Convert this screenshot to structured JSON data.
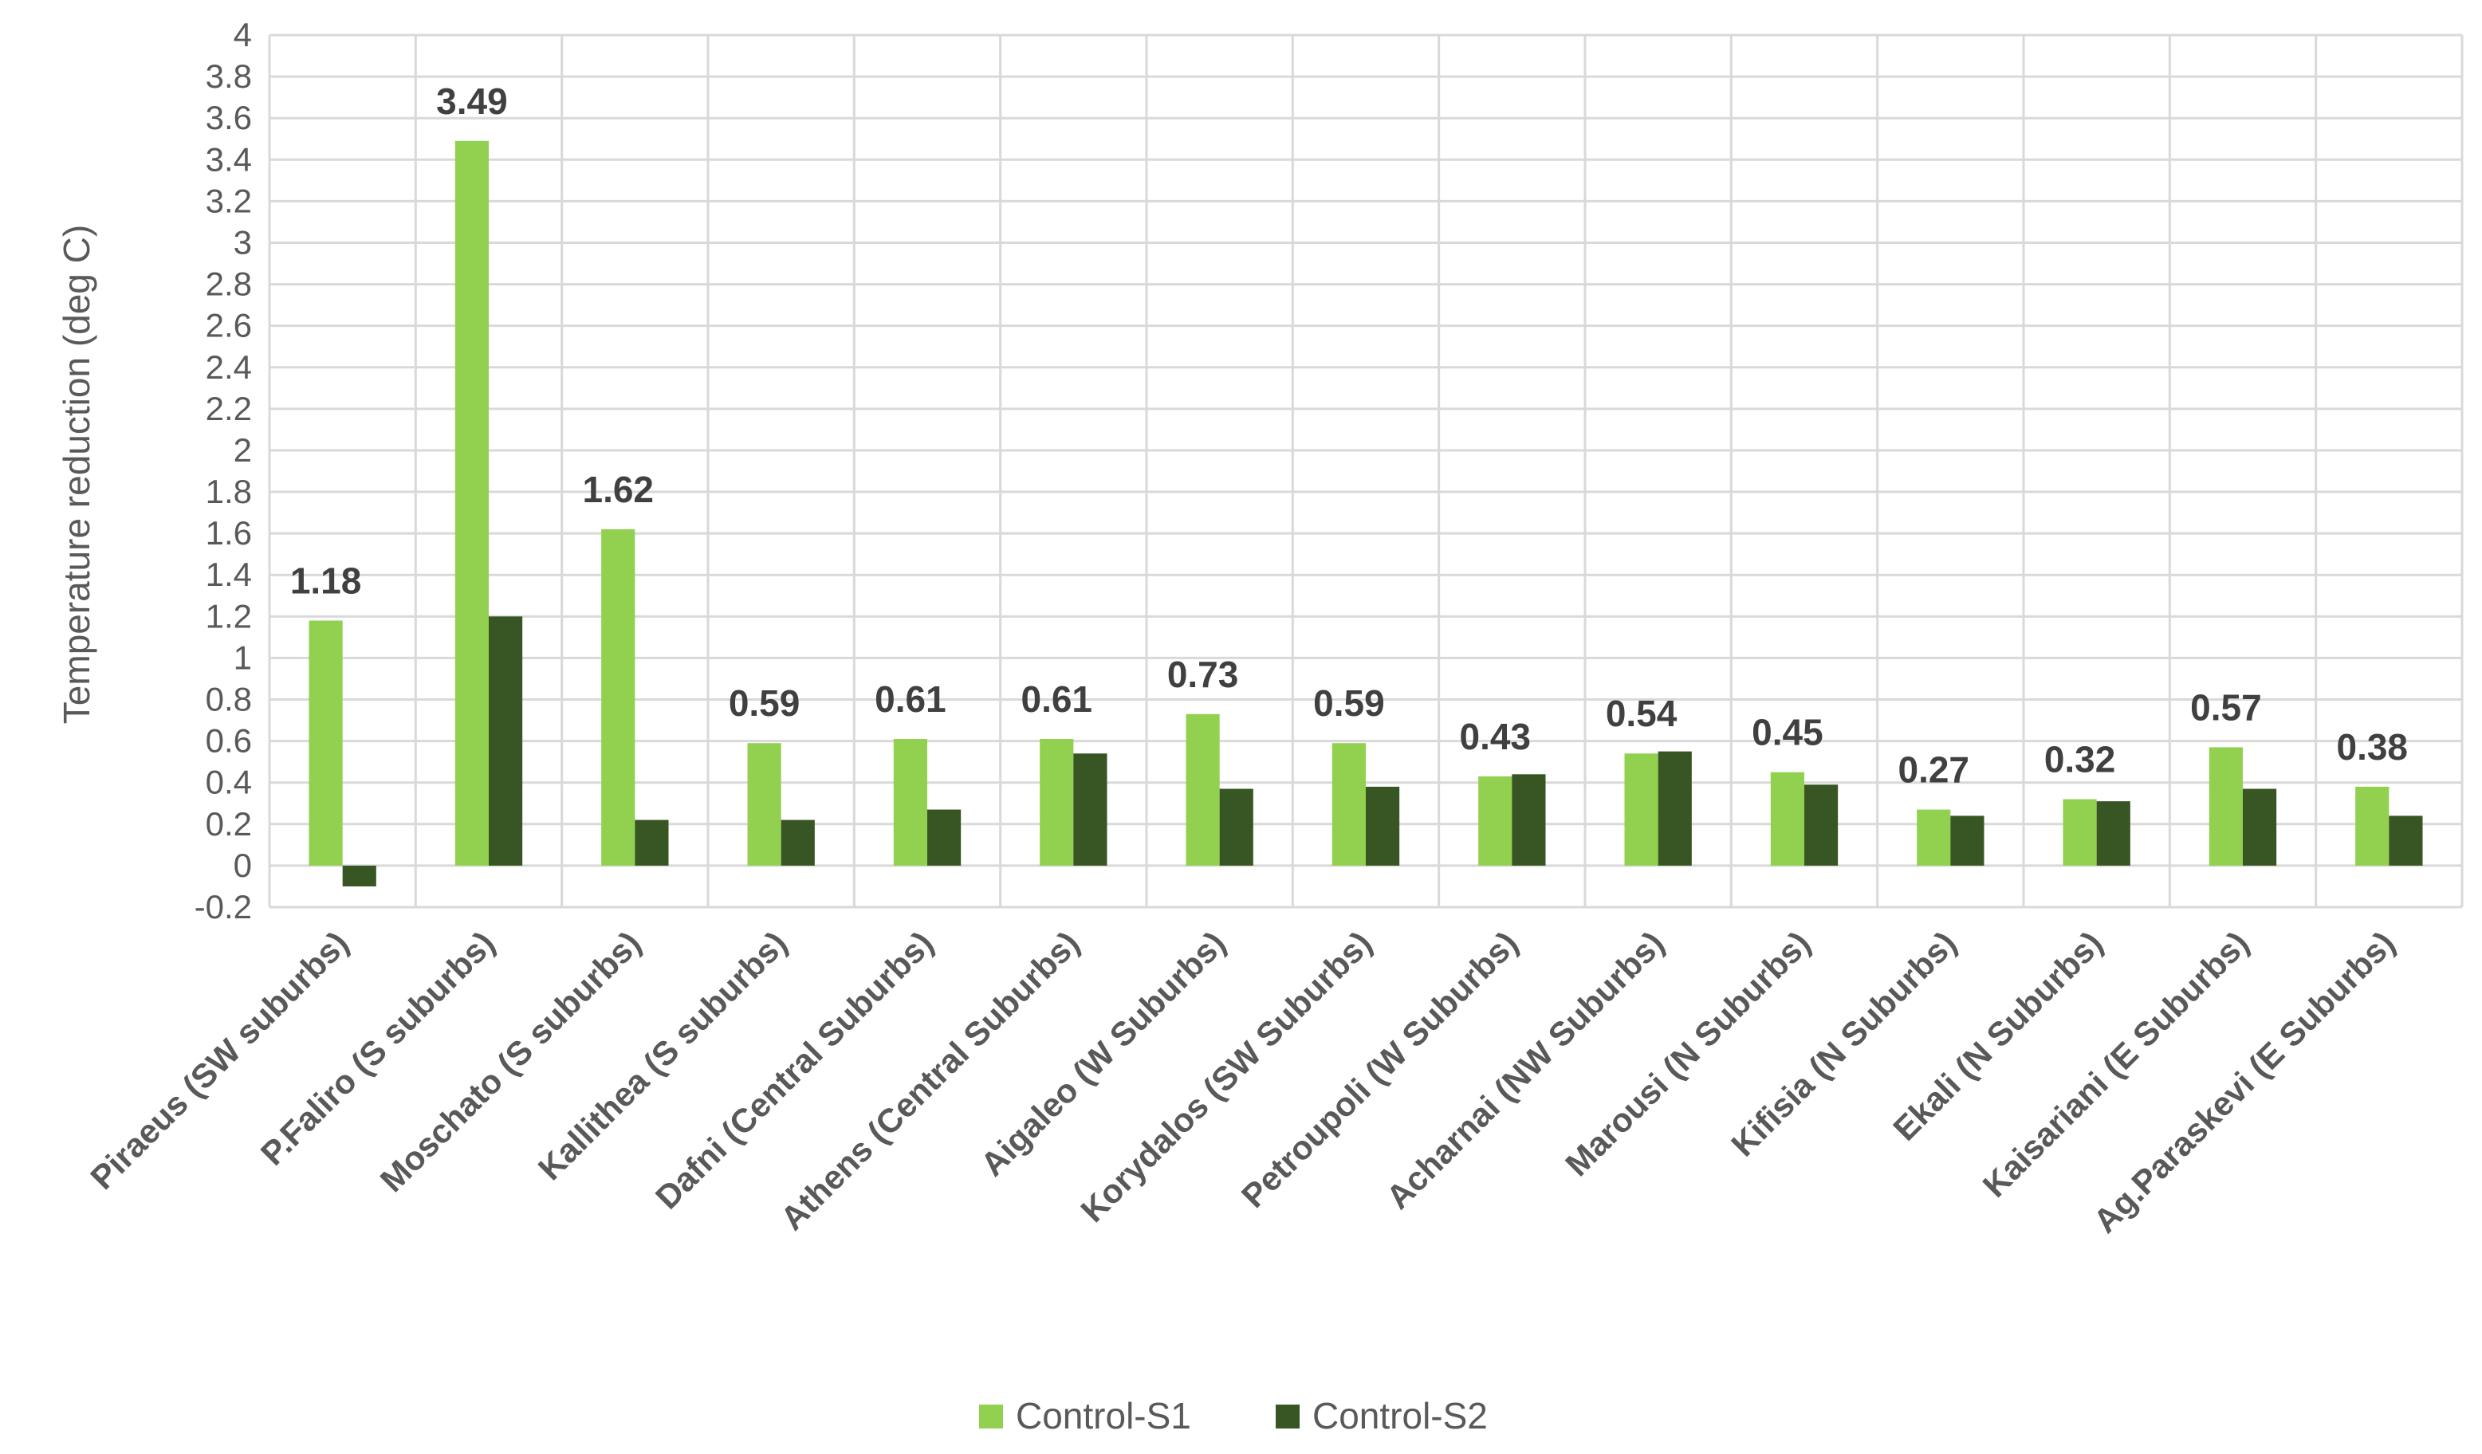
{
  "chart_data": {
    "type": "bar",
    "title": "",
    "xlabel": "",
    "ylabel": "Temperature reduction (deg C)",
    "ylim": [
      -0.2,
      4
    ],
    "ytick_step": 0.2,
    "yticks": [
      "4",
      "3.8",
      "3.6",
      "3.4",
      "3.2",
      "3",
      "2.8",
      "2.6",
      "2.4",
      "2.2",
      "2",
      "1.8",
      "1.6",
      "1.4",
      "1.2",
      "1",
      "0.8",
      "0.6",
      "0.4",
      "0.2",
      "0",
      "-0.2"
    ],
    "grid": true,
    "legend_position": "bottom",
    "categories": [
      "Piraeus (SW suburbs)",
      "P.Faliro (S suburbs)",
      "Moschato (S suburbs)",
      "Kallithea (S suburbs)",
      "Dafni (Central Suburbs)",
      "Athens (Central Suburbs)",
      "Aigaleo (W Suburbs)",
      "Korydalos (SW Suburbs)",
      "Petroupoli (W Suburbs)",
      "Acharnai (NW Suburbs)",
      "Marousi (N Suburbs)",
      "Kifisia (N Suburbs)",
      "Ekali (N Suburbs)",
      "Kaisariani (E Suburbs)",
      "Ag.Paraskevi (E Suburbs)"
    ],
    "series": [
      {
        "name": "Control-S1",
        "color": "#92d050",
        "values": [
          1.18,
          3.49,
          1.62,
          0.59,
          0.61,
          0.61,
          0.73,
          0.59,
          0.43,
          0.54,
          0.45,
          0.27,
          0.32,
          0.57,
          0.38
        ],
        "data_labels": [
          "1.18",
          "3.49",
          "1.62",
          "0.59",
          "0.61",
          "0.61",
          "0.73",
          "0.59",
          "0.43",
          "0.54",
          "0.45",
          "0.27",
          "0.32",
          "0.57",
          "0.38"
        ]
      },
      {
        "name": "Control-S2",
        "color": "#375623",
        "values": [
          -0.1,
          1.2,
          0.22,
          0.22,
          0.27,
          0.54,
          0.37,
          0.38,
          0.44,
          0.55,
          0.39,
          0.24,
          0.31,
          0.37,
          0.24
        ]
      }
    ]
  }
}
